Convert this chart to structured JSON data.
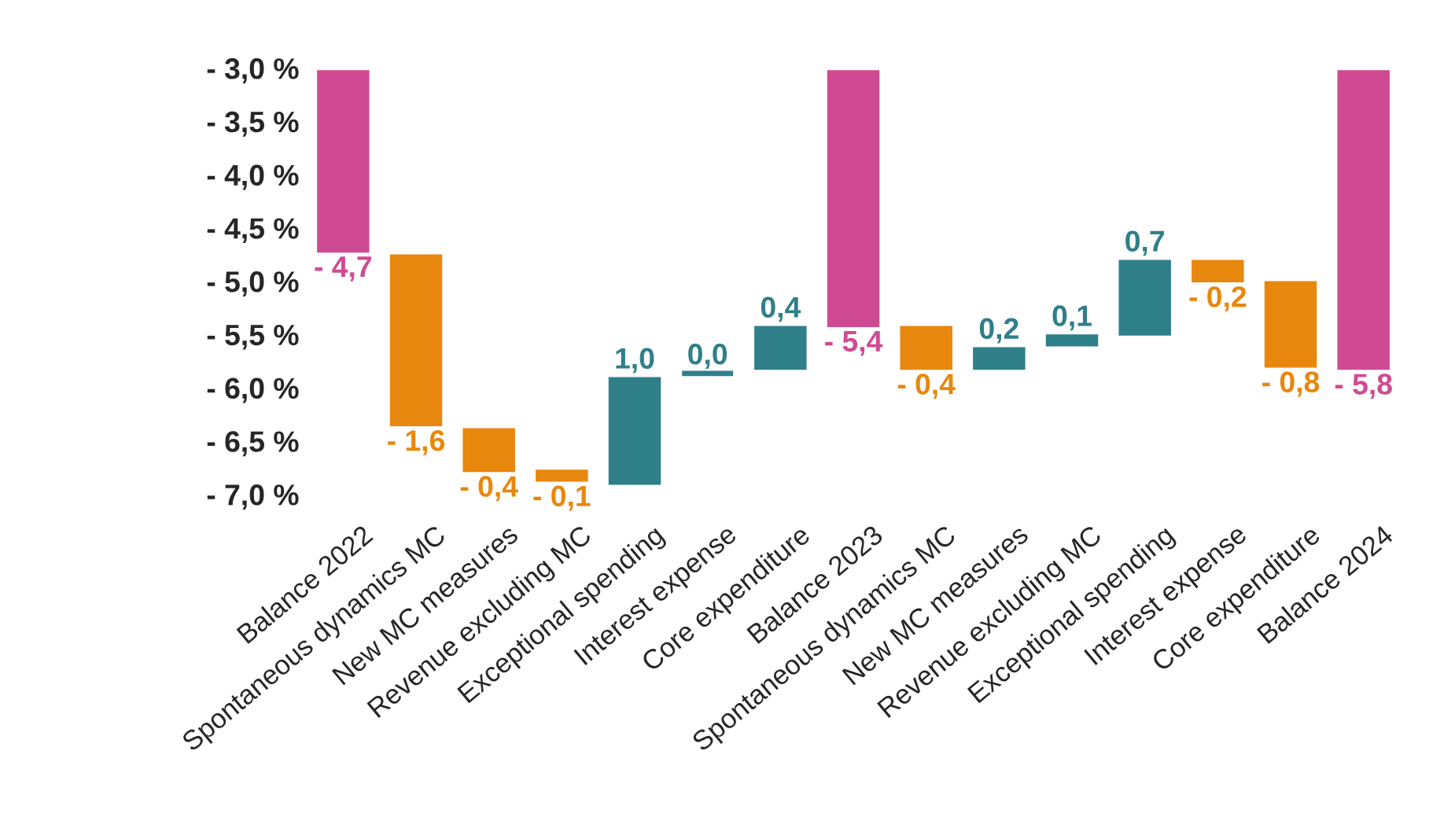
{
  "chart_data": {
    "type": "bar",
    "categories": [
      "Balance 2022",
      "Spontaneous dynamics MC",
      "New MC measures",
      "Revenue excluding MC",
      "Exceptional spending",
      "Interest expense",
      "Core expenditure",
      "Balance 2023",
      "Spontaneous dynamics MC",
      "New MC measures",
      "Revenue excluding MC",
      "Exceptional spending",
      "Interest expense",
      "Core expenditure",
      "Balance 2024"
    ],
    "base": [
      -3.0,
      -4.73,
      -6.36,
      -6.75,
      -6.88,
      -5.84,
      -5.8,
      -3.0,
      -5.4,
      -5.8,
      -5.58,
      -5.48,
      -4.78,
      -4.98,
      -3.0
    ],
    "values": [
      -1.7,
      -1.6,
      -0.4,
      -0.1,
      1.0,
      0.0,
      0.4,
      -2.4,
      -0.4,
      0.2,
      0.1,
      0.7,
      -0.2,
      -0.8,
      -2.8
    ],
    "value_labels": [
      "- 4,7",
      "- 1,6",
      "- 0,4",
      "- 0,1",
      "1,0",
      "0,0",
      "0,4",
      "- 5,4",
      "- 0,4",
      "0,2",
      "0,1",
      "0,7",
      "- 0,2",
      "- 0,8",
      "- 5,8"
    ],
    "colors": [
      "#d04a93",
      "#e8870e",
      "#e8870e",
      "#e8870e",
      "#2f7f89",
      "#2f7f89",
      "#2f7f89",
      "#d04a93",
      "#e8870e",
      "#2f7f89",
      "#2f7f89",
      "#2f7f89",
      "#e8870e",
      "#e8870e",
      "#d04a93"
    ],
    "ylim": [
      -7.0,
      -3.0
    ],
    "yticks": [
      {
        "value": -3.0,
        "label": "- 3,0 %"
      },
      {
        "value": -3.5,
        "label": "- 3,5 %"
      },
      {
        "value": -4.0,
        "label": "- 4,0 %"
      },
      {
        "value": -4.5,
        "label": "- 4,5 %"
      },
      {
        "value": -5.0,
        "label": "- 5,0 %"
      },
      {
        "value": -5.5,
        "label": "- 5,5 %"
      },
      {
        "value": -6.0,
        "label": "- 6,0 %"
      },
      {
        "value": -6.5,
        "label": "- 6,5 %"
      },
      {
        "value": -7.0,
        "label": "- 7,0 %"
      }
    ]
  }
}
